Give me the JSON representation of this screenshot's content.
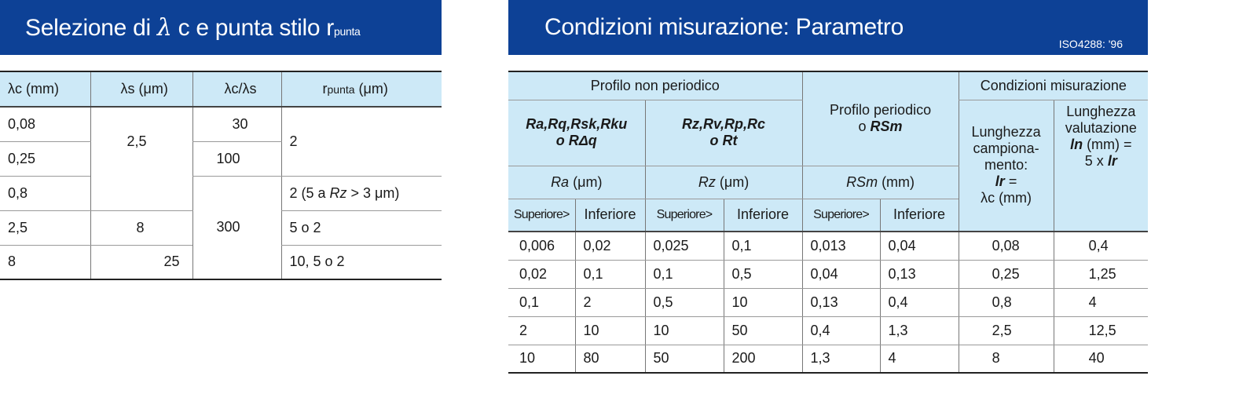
{
  "left": {
    "title_main": "Selezione di ",
    "title_lambda": "λ",
    "title_rest": " c e punta stilo r",
    "title_sub": "punta",
    "headers": {
      "lc": "λc (mm)",
      "ls": "λs (μm)",
      "ratio": "λc/λs",
      "r_main": "r",
      "r_sub": "punta",
      "r_unit": " (μm)"
    },
    "rows": [
      {
        "lc": "0,08",
        "ratio": "30"
      },
      {
        "lc": "0,25",
        "ratio": "100"
      },
      {
        "lc": "0,8"
      },
      {
        "lc": "2,5",
        "ls": "8"
      },
      {
        "lc": "8",
        "ls": "25"
      }
    ],
    "merged": {
      "ls_1": "2,5",
      "ratio_2": "300",
      "r_1": "2",
      "r_2_pre": "2 (5 a ",
      "r_2_it": "Rz",
      "r_2_post": " > 3 μm)",
      "r_3": "5 o 2",
      "r_4": "10, 5 o 2"
    }
  },
  "right": {
    "title": "Condizioni misurazione: Parametro",
    "standard": "ISO4288: '96",
    "headers": {
      "non_periodic": "Profilo non periodico",
      "periodic_line1": "Profilo periodico",
      "periodic_o": "o ",
      "periodic_rsm": "RSm",
      "conditions": "Condizioni misurazione",
      "group1_line1": "Ra,Rq,Rsk,Rku",
      "group1_line2": "o RΔq",
      "group2_line1": "Rz,Rv,Rp,Rc",
      "group2_line2": "o Rt",
      "ra_sym": "Ra",
      "ra_unit": " (μm)",
      "rz_sym": "Rz",
      "rz_unit": " (μm)",
      "rsm_sym": "RSm",
      "rsm_unit": " (mm)",
      "upper": "Superiore>",
      "lower": "Inferiore",
      "sampling_l1": "Lunghezza",
      "sampling_l2": "campiona-",
      "sampling_l3": "mento:",
      "sampling_lr": "lr",
      "sampling_eq": " =",
      "sampling_l5": "λc (mm)",
      "eval_l1": "Lunghezza",
      "eval_l2": "valutazione",
      "eval_ln": "ln",
      "eval_unit": " (mm) =",
      "eval_pre": "5 x ",
      "eval_lr": "lr"
    },
    "rows": [
      {
        "ra_up": "0,006",
        "ra_low": "0,02",
        "rz_up": "0,025",
        "rz_low": "0,1",
        "rsm_up": "0,013",
        "rsm_low": "0,04",
        "lr": "0,08",
        "ln": "0,4"
      },
      {
        "ra_up": "0,02",
        "ra_low": "0,1",
        "rz_up": "0,1",
        "rz_low": "0,5",
        "rsm_up": "0,04",
        "rsm_low": "0,13",
        "lr": "0,25",
        "ln": "1,25"
      },
      {
        "ra_up": "0,1",
        "ra_low": "2",
        "rz_up": "0,5",
        "rz_low": "10",
        "rsm_up": "0,13",
        "rsm_low": "0,4",
        "lr": "0,8",
        "ln": "4"
      },
      {
        "ra_up": "2",
        "ra_low": "10",
        "rz_up": "10",
        "rz_low": "50",
        "rsm_up": "0,4",
        "rsm_low": "1,3",
        "lr": "2,5",
        "ln": "12,5"
      },
      {
        "ra_up": "10",
        "ra_low": "80",
        "rz_up": "50",
        "rz_low": "200",
        "rsm_up": "1,3",
        "rsm_low": "4",
        "lr": "8",
        "ln": "40"
      }
    ]
  },
  "colors": {
    "banner": "#0d4196",
    "header_fill": "#cde9f7"
  }
}
